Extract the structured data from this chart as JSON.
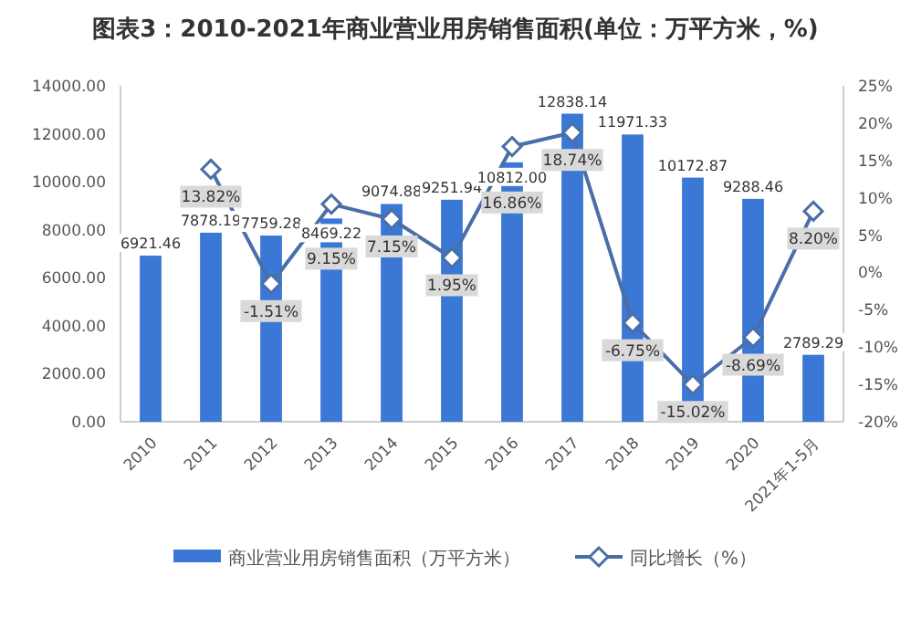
{
  "chart_data": {
    "type": "bar",
    "title": "图表3：2010-2021年商业营业用房销售面积(单位：万平方米，%)",
    "categories": [
      "2010",
      "2011",
      "2012",
      "2013",
      "2014",
      "2015",
      "2016",
      "2017",
      "2018",
      "2019",
      "2020",
      "2021年1-5月"
    ],
    "series": [
      {
        "name": "商业营业用房销售面积（万平方米）",
        "color": "#3b78d6",
        "values": [
          6921.46,
          7878.19,
          7759.28,
          8469.22,
          9074.88,
          9251.94,
          10812.0,
          12838.14,
          11971.33,
          10172.87,
          9288.46,
          2789.29
        ],
        "value_labels": [
          "6921.46",
          "7878.19",
          "7759.28",
          "8469.22",
          "9074.88",
          "9251.94",
          "10812.00",
          "12838.14",
          "11971.33",
          "10172.87",
          "9288.46",
          "2789.29"
        ]
      },
      {
        "name": "同比增长（%）",
        "type": "line",
        "axis": "y2",
        "color": "#4a6fa8",
        "marker": "diamond",
        "values": [
          null,
          13.82,
          -1.51,
          9.15,
          7.15,
          1.95,
          16.86,
          18.74,
          -6.75,
          -15.02,
          -8.69,
          8.2
        ],
        "value_labels": [
          null,
          "13.82%",
          "-1.51%",
          "9.15%",
          "7.15%",
          "1.95%",
          "16.86%",
          "18.74%",
          "-6.75%",
          "-15.02%",
          "-8.69%",
          "8.20%"
        ]
      }
    ],
    "ylim": [
      0,
      14000
    ],
    "yticks": [
      {
        "value": 0,
        "label": "0.00"
      },
      {
        "value": 2000,
        "label": "2000.00"
      },
      {
        "value": 4000,
        "label": "4000.00"
      },
      {
        "value": 6000,
        "label": "6000.00"
      },
      {
        "value": 8000,
        "label": "8000.00"
      },
      {
        "value": 10000,
        "label": "10000.00"
      },
      {
        "value": 12000,
        "label": "12000.00"
      },
      {
        "value": 14000,
        "label": "14000.00"
      }
    ],
    "y2lim": [
      -20,
      25
    ],
    "y2ticks": [
      {
        "value": -20,
        "label": "-20%"
      },
      {
        "value": -15,
        "label": "-15%"
      },
      {
        "value": -10,
        "label": "-10%"
      },
      {
        "value": -5,
        "label": "-5%"
      },
      {
        "value": 0,
        "label": "0%"
      },
      {
        "value": 5,
        "label": "5%"
      },
      {
        "value": 10,
        "label": "10%"
      },
      {
        "value": 15,
        "label": "15%"
      },
      {
        "value": 20,
        "label": "20%"
      },
      {
        "value": 25,
        "label": "25%"
      }
    ],
    "legend": "bottom",
    "grid": false
  }
}
